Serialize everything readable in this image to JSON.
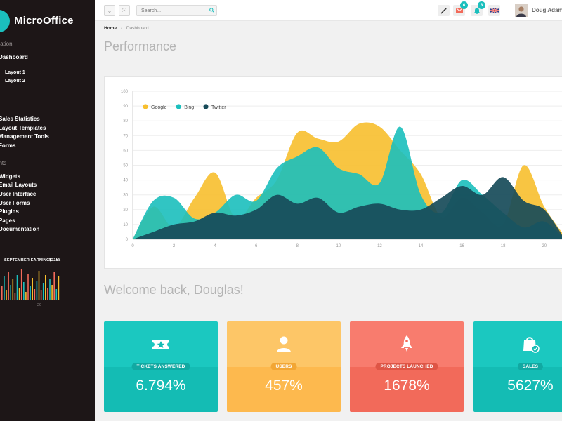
{
  "app": {
    "name": "MicroOffice"
  },
  "sidebar": {
    "sections": [
      "igation",
      "ents"
    ],
    "dashboard": "Dashboard",
    "layout_items": [
      "Layout 1",
      "Layout 2"
    ],
    "group1": [
      "Sales Statistics",
      "Layout Templates",
      "Management Tools",
      "Forms"
    ],
    "group2": [
      "Widgets",
      "Email Layouts",
      "User Interface",
      "User Forms",
      "Plugins",
      "Pages",
      "Documentation"
    ],
    "earnings": {
      "label": "SEPTEMBER EARNINGS",
      "value": "$1158",
      "axis_label": "20"
    }
  },
  "topbar": {
    "search_placeholder": "Search...",
    "mail_count": "6",
    "notif_count": "8",
    "user_name": "Doug Adams"
  },
  "breadcrumb": {
    "home": "Home",
    "current": "Dashboard"
  },
  "page": {
    "title": "Performance",
    "welcome": "Welcome back, Douglas!"
  },
  "colors": {
    "teal": "#1bbfbd",
    "yellow": "#f7bf2e",
    "darkteal": "#174b59",
    "orange": "#fdb94e",
    "red": "#f26a5a"
  },
  "chart_data": {
    "type": "area",
    "x": [
      0,
      1,
      2,
      3,
      4,
      5,
      6,
      7,
      8,
      9,
      10,
      11,
      12,
      13,
      14,
      15,
      16,
      17,
      18,
      19,
      20,
      21
    ],
    "y_ticks": [
      0,
      10,
      20,
      30,
      40,
      50,
      60,
      70,
      80,
      90,
      100
    ],
    "x_ticks": [
      0,
      2,
      4,
      6,
      8,
      10,
      12,
      14,
      16,
      18,
      20
    ],
    "ylim": [
      0,
      100
    ],
    "xlim": [
      0,
      21
    ],
    "legend_position": "top-left",
    "series": [
      {
        "name": "Google",
        "color": "#f7bf2e",
        "values": [
          0,
          22,
          8,
          28,
          45,
          14,
          28,
          40,
          72,
          68,
          66,
          78,
          76,
          60,
          44,
          15,
          28,
          18,
          10,
          50,
          22,
          2
        ]
      },
      {
        "name": "Bing",
        "color": "#1bbfbd",
        "values": [
          0,
          26,
          28,
          14,
          18,
          30,
          26,
          48,
          56,
          62,
          48,
          44,
          38,
          76,
          30,
          18,
          40,
          30,
          18,
          8,
          12,
          0
        ]
      },
      {
        "name": "Twitter",
        "color": "#174b59",
        "values": [
          0,
          5,
          10,
          12,
          18,
          16,
          20,
          30,
          24,
          28,
          18,
          22,
          24,
          20,
          20,
          28,
          36,
          30,
          42,
          26,
          20,
          0
        ]
      }
    ]
  },
  "cards": [
    {
      "label": "TICKETS ANSWERED",
      "value": "6.794%",
      "icon": "ticket-star-icon"
    },
    {
      "label": "USERS",
      "value": "457%",
      "icon": "user-icon"
    },
    {
      "label": "PROJECTS LAUNCHED",
      "value": "1678%",
      "icon": "rocket-icon"
    },
    {
      "label": "SALES",
      "value": "5627%",
      "icon": "shopping-bag-icon"
    }
  ]
}
